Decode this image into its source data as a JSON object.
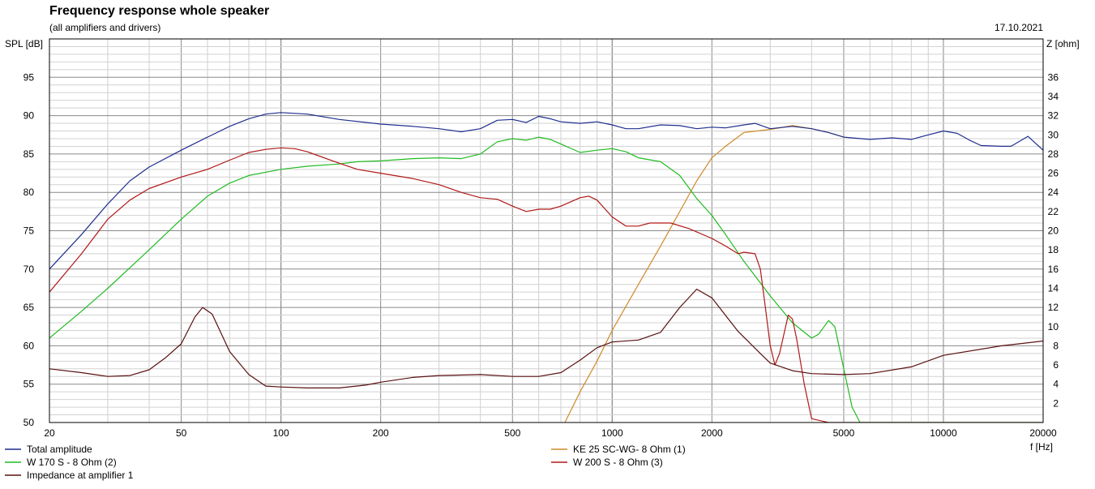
{
  "header": {
    "title": "Frequency response whole speaker",
    "subtitle": "(all amplifiers and drivers)",
    "date": "17.10.2021"
  },
  "chart_data": {
    "type": "line",
    "xlabel": "f [Hz]",
    "ylabel": "SPL [dB]",
    "y2label": "Z [ohm]",
    "xscale": "log",
    "xlim": [
      20,
      20000
    ],
    "ylim": [
      50,
      100
    ],
    "y2lim": [
      0,
      40
    ],
    "grid": true,
    "x_ticks": [
      20,
      50,
      100,
      200,
      500,
      1000,
      2000,
      5000,
      10000,
      20000
    ],
    "y_ticks": [
      50,
      55,
      60,
      65,
      70,
      75,
      80,
      85,
      90,
      95
    ],
    "y2_ticks": [
      2,
      4,
      6,
      8,
      10,
      12,
      14,
      16,
      18,
      20,
      22,
      24,
      26,
      28,
      30,
      32,
      34,
      36
    ],
    "legend_position": "bottom",
    "series": [
      {
        "name": "Total amplitude",
        "axis": "left",
        "color": "#1f2f8f",
        "points": [
          [
            20,
            70
          ],
          [
            25,
            74.5
          ],
          [
            30,
            78.5
          ],
          [
            35,
            81.5
          ],
          [
            40,
            83.3
          ],
          [
            50,
            85.5
          ],
          [
            60,
            87.2
          ],
          [
            70,
            88.6
          ],
          [
            80,
            89.6
          ],
          [
            90,
            90.2
          ],
          [
            100,
            90.4
          ],
          [
            120,
            90.2
          ],
          [
            150,
            89.5
          ],
          [
            200,
            88.9
          ],
          [
            250,
            88.6
          ],
          [
            300,
            88.3
          ],
          [
            350,
            87.9
          ],
          [
            400,
            88.3
          ],
          [
            450,
            89.4
          ],
          [
            500,
            89.5
          ],
          [
            550,
            89.1
          ],
          [
            600,
            89.9
          ],
          [
            650,
            89.6
          ],
          [
            700,
            89.2
          ],
          [
            800,
            89
          ],
          [
            900,
            89.2
          ],
          [
            1000,
            88.8
          ],
          [
            1100,
            88.3
          ],
          [
            1200,
            88.3
          ],
          [
            1400,
            88.8
          ],
          [
            1600,
            88.7
          ],
          [
            1800,
            88.3
          ],
          [
            2000,
            88.5
          ],
          [
            2200,
            88.4
          ],
          [
            2500,
            88.8
          ],
          [
            2700,
            89
          ],
          [
            3000,
            88.3
          ],
          [
            3500,
            88.6
          ],
          [
            4000,
            88.3
          ],
          [
            4500,
            87.8
          ],
          [
            5000,
            87.2
          ],
          [
            6000,
            86.9
          ],
          [
            7000,
            87.1
          ],
          [
            8000,
            86.9
          ],
          [
            9000,
            87.5
          ],
          [
            10000,
            88
          ],
          [
            11000,
            87.7
          ],
          [
            12000,
            86.8
          ],
          [
            13000,
            86.1
          ],
          [
            15000,
            86
          ],
          [
            16000,
            86
          ],
          [
            18000,
            87.3
          ],
          [
            20000,
            85.5
          ]
        ]
      },
      {
        "name": "W 170 S - 8 Ohm (2)",
        "axis": "left",
        "color": "#22bb22",
        "points": [
          [
            20,
            61
          ],
          [
            25,
            64.5
          ],
          [
            30,
            67.5
          ],
          [
            40,
            72.5
          ],
          [
            50,
            76.5
          ],
          [
            60,
            79.5
          ],
          [
            70,
            81.2
          ],
          [
            80,
            82.2
          ],
          [
            100,
            83
          ],
          [
            120,
            83.4
          ],
          [
            150,
            83.7
          ],
          [
            170,
            84
          ],
          [
            200,
            84.1
          ],
          [
            250,
            84.4
          ],
          [
            300,
            84.5
          ],
          [
            350,
            84.4
          ],
          [
            400,
            85
          ],
          [
            450,
            86.6
          ],
          [
            500,
            87
          ],
          [
            550,
            86.8
          ],
          [
            600,
            87.2
          ],
          [
            650,
            86.9
          ],
          [
            700,
            86.3
          ],
          [
            800,
            85.2
          ],
          [
            900,
            85.5
          ],
          [
            1000,
            85.7
          ],
          [
            1100,
            85.3
          ],
          [
            1200,
            84.5
          ],
          [
            1400,
            84
          ],
          [
            1600,
            82.2
          ],
          [
            1800,
            79.2
          ],
          [
            2000,
            77
          ],
          [
            2200,
            74.5
          ],
          [
            2500,
            71
          ],
          [
            3000,
            66.5
          ],
          [
            3500,
            63
          ],
          [
            4000,
            61
          ],
          [
            4200,
            61.5
          ],
          [
            4500,
            63.3
          ],
          [
            4700,
            62.5
          ],
          [
            5000,
            57
          ],
          [
            5300,
            52
          ],
          [
            5600,
            50
          ],
          [
            20000,
            50
          ]
        ]
      },
      {
        "name": "Impedance at amplifier 1",
        "axis": "right",
        "color": "#5a1010",
        "points": [
          [
            20,
            5.6
          ],
          [
            25,
            5.2
          ],
          [
            30,
            4.8
          ],
          [
            35,
            4.9
          ],
          [
            40,
            5.5
          ],
          [
            45,
            6.8
          ],
          [
            50,
            8.2
          ],
          [
            55,
            11
          ],
          [
            58,
            12
          ],
          [
            62,
            11.3
          ],
          [
            70,
            7.4
          ],
          [
            80,
            5
          ],
          [
            90,
            3.8
          ],
          [
            100,
            3.7
          ],
          [
            120,
            3.6
          ],
          [
            150,
            3.6
          ],
          [
            180,
            3.9
          ],
          [
            200,
            4.2
          ],
          [
            250,
            4.7
          ],
          [
            300,
            4.9
          ],
          [
            400,
            5
          ],
          [
            500,
            4.8
          ],
          [
            600,
            4.8
          ],
          [
            700,
            5.2
          ],
          [
            800,
            6.5
          ],
          [
            900,
            7.8
          ],
          [
            1000,
            8.4
          ],
          [
            1200,
            8.6
          ],
          [
            1400,
            9.4
          ],
          [
            1600,
            12
          ],
          [
            1800,
            13.9
          ],
          [
            2000,
            13
          ],
          [
            2400,
            9.5
          ],
          [
            2800,
            7.2
          ],
          [
            3000,
            6.2
          ],
          [
            3500,
            5.4
          ],
          [
            4000,
            5.1
          ],
          [
            5000,
            5
          ],
          [
            6000,
            5.1
          ],
          [
            8000,
            5.8
          ],
          [
            10000,
            7
          ],
          [
            15000,
            8
          ],
          [
            20000,
            8.5
          ]
        ]
      },
      {
        "name": "KE 25 SC-WG- 8 Ohm    (1)",
        "axis": "left",
        "color": "#d08a2a",
        "points": [
          [
            720,
            50
          ],
          [
            800,
            54
          ],
          [
            900,
            58
          ],
          [
            1000,
            62
          ],
          [
            1200,
            68
          ],
          [
            1400,
            73
          ],
          [
            1600,
            77.5
          ],
          [
            1800,
            81.5
          ],
          [
            2000,
            84.5
          ],
          [
            2200,
            86
          ],
          [
            2500,
            87.8
          ],
          [
            3000,
            88.2
          ],
          [
            3500,
            88.7
          ],
          [
            4000,
            88.3
          ],
          [
            4500,
            87.8
          ],
          [
            5000,
            87.2
          ]
        ]
      },
      {
        "name": "W 200 S - 8 Ohm (3)",
        "axis": "left",
        "color": "#b01818",
        "points": [
          [
            20,
            67
          ],
          [
            25,
            72
          ],
          [
            30,
            76.5
          ],
          [
            35,
            79
          ],
          [
            40,
            80.5
          ],
          [
            50,
            82
          ],
          [
            60,
            83
          ],
          [
            70,
            84.2
          ],
          [
            80,
            85.2
          ],
          [
            90,
            85.6
          ],
          [
            100,
            85.8
          ],
          [
            110,
            85.7
          ],
          [
            120,
            85.3
          ],
          [
            150,
            83.8
          ],
          [
            170,
            83
          ],
          [
            200,
            82.5
          ],
          [
            250,
            81.8
          ],
          [
            300,
            81
          ],
          [
            350,
            80
          ],
          [
            400,
            79.3
          ],
          [
            450,
            79.1
          ],
          [
            500,
            78.2
          ],
          [
            550,
            77.5
          ],
          [
            600,
            77.8
          ],
          [
            650,
            77.8
          ],
          [
            700,
            78.2
          ],
          [
            800,
            79.3
          ],
          [
            850,
            79.5
          ],
          [
            900,
            79
          ],
          [
            1000,
            76.8
          ],
          [
            1100,
            75.6
          ],
          [
            1200,
            75.6
          ],
          [
            1300,
            76
          ],
          [
            1500,
            76
          ],
          [
            1700,
            75.3
          ],
          [
            2000,
            74
          ],
          [
            2200,
            73
          ],
          [
            2400,
            72
          ],
          [
            2500,
            72.2
          ],
          [
            2700,
            72
          ],
          [
            2800,
            70
          ],
          [
            2900,
            65
          ],
          [
            3000,
            60
          ],
          [
            3100,
            57.5
          ],
          [
            3200,
            59
          ],
          [
            3400,
            64
          ],
          [
            3500,
            63.5
          ],
          [
            3600,
            61
          ],
          [
            3800,
            55
          ],
          [
            4000,
            50.5
          ],
          [
            4500,
            50
          ],
          [
            5000,
            50
          ],
          [
            20000,
            50
          ]
        ]
      }
    ]
  }
}
